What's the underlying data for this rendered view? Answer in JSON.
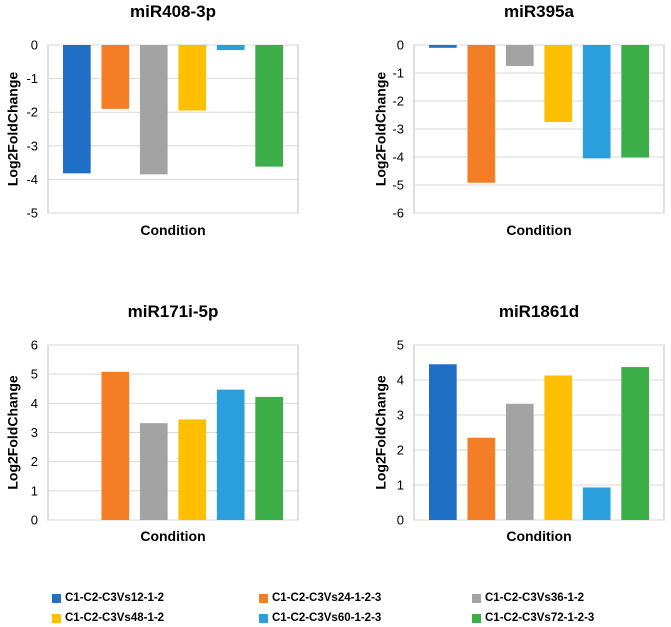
{
  "colors": [
    "#1f6fc6",
    "#f47e26",
    "#a3a3a3",
    "#fdbf00",
    "#2b9fdc",
    "#3cae48"
  ],
  "legend": [
    {
      "label": "C1-C2-C3Vs12-1-2",
      "color": "#1f6fc6"
    },
    {
      "label": "C1-C2-C3Vs24-1-2-3",
      "color": "#f47e26"
    },
    {
      "label": "C1-C2-C3Vs36-1-2",
      "color": "#a3a3a3"
    },
    {
      "label": "C1-C2-C3Vs48-1-2",
      "color": "#fdbf00"
    },
    {
      "label": "C1-C2-C3Vs60-1-2-3",
      "color": "#2b9fdc"
    },
    {
      "label": "C1-C2-C3Vs72-1-2-3",
      "color": "#3cae48"
    }
  ],
  "chart_data": [
    {
      "type": "bar",
      "title": "miR408-3p",
      "xlabel": "Condition",
      "ylabel": "Log2FoldChange",
      "ylim": [
        -5,
        0
      ],
      "yticks": [
        0,
        -1,
        -2,
        -3,
        -4,
        -5
      ],
      "grid": true,
      "series": [
        {
          "name": "C1-C2-C3Vs12-1-2",
          "values": [
            -3.82
          ]
        },
        {
          "name": "C1-C2-C3Vs24-1-2-3",
          "values": [
            -1.9
          ]
        },
        {
          "name": "C1-C2-C3Vs36-1-2",
          "values": [
            -3.85
          ]
        },
        {
          "name": "C1-C2-C3Vs48-1-2",
          "values": [
            -1.95
          ]
        },
        {
          "name": "C1-C2-C3Vs60-1-2-3",
          "values": [
            -0.15
          ]
        },
        {
          "name": "C1-C2-C3Vs72-1-2-3",
          "values": [
            -3.62
          ]
        }
      ]
    },
    {
      "type": "bar",
      "title": "miR395a",
      "xlabel": "Condition",
      "ylabel": "Log2FoldChange",
      "ylim": [
        -6,
        0
      ],
      "yticks": [
        0,
        -1,
        -2,
        -3,
        -4,
        -5,
        -6
      ],
      "grid": true,
      "series": [
        {
          "name": "C1-C2-C3Vs12-1-2",
          "values": [
            -0.1
          ]
        },
        {
          "name": "C1-C2-C3Vs24-1-2-3",
          "values": [
            -4.92
          ]
        },
        {
          "name": "C1-C2-C3Vs36-1-2",
          "values": [
            -0.75
          ]
        },
        {
          "name": "C1-C2-C3Vs48-1-2",
          "values": [
            -2.75
          ]
        },
        {
          "name": "C1-C2-C3Vs60-1-2-3",
          "values": [
            -4.05
          ]
        },
        {
          "name": "C1-C2-C3Vs72-1-2-3",
          "values": [
            -4.02
          ]
        }
      ]
    },
    {
      "type": "bar",
      "title": "miR171i-5p",
      "xlabel": "Condition",
      "ylabel": "Log2FoldChange",
      "ylim": [
        0,
        6
      ],
      "yticks": [
        0,
        1,
        2,
        3,
        4,
        5,
        6
      ],
      "grid": true,
      "series": [
        {
          "name": "C1-C2-C3Vs12-1-2",
          "values": [
            0
          ]
        },
        {
          "name": "C1-C2-C3Vs24-1-2-3",
          "values": [
            5.08
          ]
        },
        {
          "name": "C1-C2-C3Vs36-1-2",
          "values": [
            3.32
          ]
        },
        {
          "name": "C1-C2-C3Vs48-1-2",
          "values": [
            3.45
          ]
        },
        {
          "name": "C1-C2-C3Vs60-1-2-3",
          "values": [
            4.47
          ]
        },
        {
          "name": "C1-C2-C3Vs72-1-2-3",
          "values": [
            4.22
          ]
        }
      ]
    },
    {
      "type": "bar",
      "title": "miR1861d",
      "xlabel": "Condition",
      "ylabel": "Log2FoldChange",
      "ylim": [
        0,
        5
      ],
      "yticks": [
        0,
        1,
        2,
        3,
        4,
        5
      ],
      "grid": true,
      "series": [
        {
          "name": "C1-C2-C3Vs12-1-2",
          "values": [
            4.45
          ]
        },
        {
          "name": "C1-C2-C3Vs24-1-2-3",
          "values": [
            2.35
          ]
        },
        {
          "name": "C1-C2-C3Vs36-1-2",
          "values": [
            3.32
          ]
        },
        {
          "name": "C1-C2-C3Vs48-1-2",
          "values": [
            4.13
          ]
        },
        {
          "name": "C1-C2-C3Vs60-1-2-3",
          "values": [
            0.93
          ]
        },
        {
          "name": "C1-C2-C3Vs72-1-2-3",
          "values": [
            4.37
          ]
        }
      ]
    }
  ]
}
